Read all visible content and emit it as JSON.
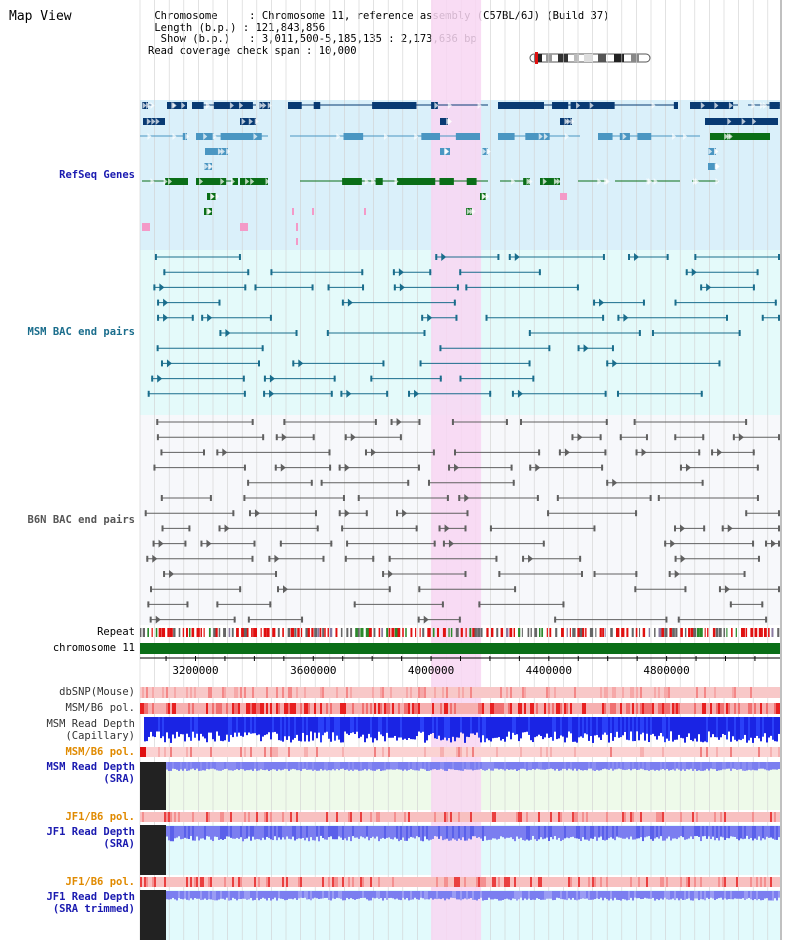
{
  "view": {
    "title": "Map View"
  },
  "info": {
    "chromosome_key": "Chromosome     :",
    "chromosome_value": "Chromosome 11, reference assembly (C57BL/6J) (Build 37)",
    "length_key": "Length (b.p.) :",
    "length_value": "121,843,856",
    "show_key": "Show (b.p.)   :",
    "show_value": "3,011,500-5,185,135 : 2,173,636 bp",
    "coverage_key": "Read coverage check span :",
    "coverage_value": "10,000"
  },
  "tracks": {
    "refseq": "RefSeq Genes",
    "msm_bac": "MSM BAC end pairs",
    "b6n_bac": "B6N BAC end pairs",
    "repeat": "Repeat",
    "chromosome": "chromosome 11",
    "dbsnp": "dbSNP(Mouse)",
    "msm_b6_pol": "MSM/B6 pol.",
    "msm_read_depth_cap": "MSM Read Depth\n(Capillary)",
    "msm_b6_pol2": "MSM/B6 pol.",
    "msm_read_depth_sra": "MSM Read Depth\n(SRA)",
    "jf1_b6_pol": "JF1/B6 pol.",
    "jf1_read_depth_sra": "JF1 Read Depth\n(SRA)",
    "jf1_b6_pol2": "JF1/B6 pol.",
    "jf1_read_depth_trim": "JF1 Read Depth\n(SRA trimmed)"
  },
  "axis": {
    "ticks": [
      {
        "value": 3200000,
        "label": "3200000"
      },
      {
        "value": 3600000,
        "label": "3600000"
      },
      {
        "value": 4000000,
        "label": "4000000"
      },
      {
        "value": 4400000,
        "label": "4400000"
      },
      {
        "value": 4800000,
        "label": "4800000"
      }
    ],
    "range": [
      3011500,
      5185135
    ]
  },
  "highlight": {
    "start": 4000000,
    "end": 4170000
  },
  "colors": {
    "refseq_bg": "#daf0fa",
    "msm_bg": "#e4fafa",
    "b6n_bg": "#f7f8fb",
    "highlight": "#f8d6f2",
    "gene_dark": "#083a73",
    "gene_mid": "#4a96c2",
    "gene_green": "#0a6e17",
    "gene_pink": "#f49ac8",
    "bac_teal": "#1a6d8c",
    "bac_gray": "#606060",
    "chromosome": "#0a6e17",
    "depth_blue": "#1a24e4",
    "depth_light": "#7b7ef0",
    "label_blue": "#1a1ab0",
    "label_orange": "#e08a00",
    "label_teal": "#1a6d8c"
  }
}
